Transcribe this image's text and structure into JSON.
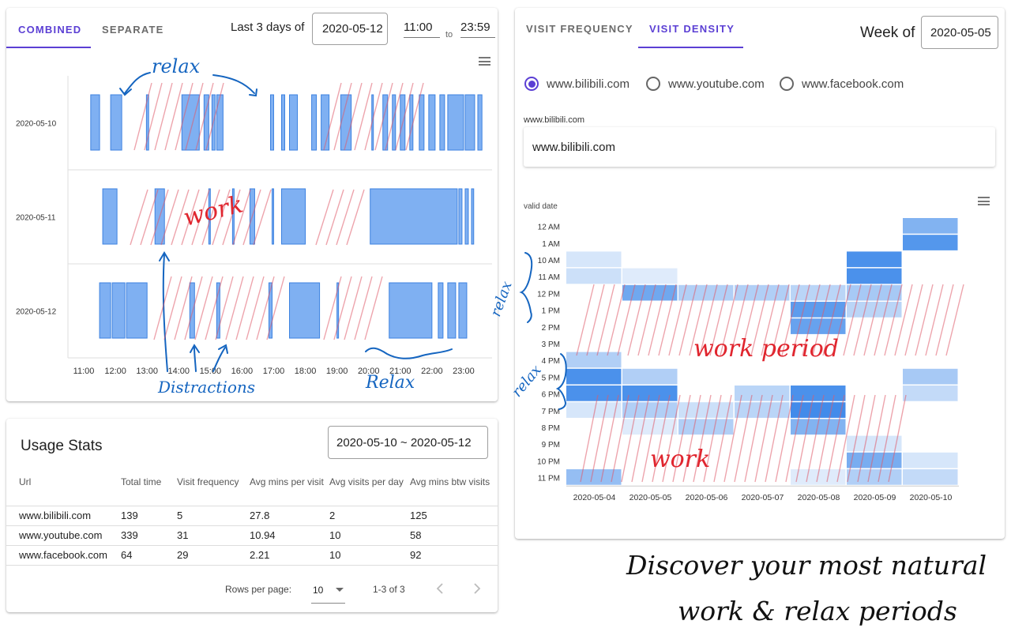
{
  "left": {
    "tabs": [
      {
        "label": "COMBINED",
        "active": true
      },
      {
        "label": "SEPARATE",
        "active": false
      }
    ],
    "range_label": "Last 3 days of",
    "date": "2020-05-12",
    "time_from": "11:00",
    "to_label": "to",
    "time_to": "23:59",
    "menu_icon": "hamburger-menu-icon"
  },
  "timeline": {
    "rows": [
      {
        "label": "2020-05-10",
        "blocks": [
          [
            11.22,
            11.5
          ],
          [
            11.85,
            12.2
          ],
          [
            12.98,
            13.05
          ],
          [
            14.1,
            14.65
          ],
          [
            14.8,
            14.95
          ],
          [
            15.05,
            15.15
          ],
          [
            15.2,
            15.4
          ],
          [
            16.9,
            17.0
          ],
          [
            17.25,
            17.35
          ],
          [
            17.5,
            17.75
          ],
          [
            18.2,
            18.35
          ],
          [
            18.5,
            18.75
          ],
          [
            19.12,
            19.45
          ],
          [
            20.1,
            20.15
          ],
          [
            20.45,
            20.6
          ],
          [
            20.75,
            20.85
          ],
          [
            21.0,
            21.15
          ],
          [
            21.3,
            21.4
          ],
          [
            21.6,
            21.75
          ],
          [
            21.9,
            22.1
          ],
          [
            22.25,
            22.4
          ],
          [
            22.5,
            23.0
          ],
          [
            23.05,
            23.35
          ],
          [
            23.45,
            23.58
          ]
        ]
      },
      {
        "label": "2020-05-11",
        "blocks": [
          [
            11.6,
            12.05
          ],
          [
            13.25,
            13.55
          ],
          [
            14.95,
            15.0
          ],
          [
            15.7,
            15.75
          ],
          [
            16.25,
            16.4
          ],
          [
            16.95,
            17.0
          ],
          [
            17.25,
            18.0
          ],
          [
            20.05,
            22.8
          ],
          [
            22.85,
            22.95
          ],
          [
            23.05,
            23.15
          ],
          [
            23.25,
            23.32
          ]
        ]
      },
      {
        "label": "2020-05-12",
        "blocks": [
          [
            11.5,
            11.85
          ],
          [
            11.9,
            12.3
          ],
          [
            12.35,
            13.0
          ],
          [
            14.35,
            14.5
          ],
          [
            15.2,
            15.3
          ],
          [
            16.85,
            16.95
          ],
          [
            17.5,
            18.45
          ],
          [
            19.0,
            19.05
          ],
          [
            20.65,
            22.0
          ],
          [
            22.2,
            22.35
          ],
          [
            22.5,
            22.75
          ],
          [
            22.85,
            23.1
          ]
        ]
      }
    ],
    "ticks": [
      "11:00",
      "12:00",
      "13:00",
      "14:00",
      "15:00",
      "16:00",
      "17:00",
      "18:00",
      "19:00",
      "20:00",
      "21:00",
      "22:00",
      "23:00"
    ]
  },
  "stats": {
    "title": "Usage Stats",
    "range": "2020-05-10 ~ 2020-05-12",
    "headers": [
      "Url",
      "Total time",
      "Visit frequency",
      "Avg mins per visit",
      "Avg visits per day",
      "Avg mins btw visits"
    ],
    "rows": [
      [
        "www.bilibili.com",
        "139",
        "5",
        "27.8",
        "2",
        "125"
      ],
      [
        "www.youtube.com",
        "339",
        "31",
        "10.94",
        "10",
        "58"
      ],
      [
        "www.facebook.com",
        "64",
        "29",
        "2.21",
        "10",
        "92"
      ]
    ],
    "footer": {
      "rows_per_page_label": "Rows per page:",
      "rows_per_page": "10",
      "page_info": "1-3 of 3",
      "prev_icon": "chevron-left-icon",
      "next_icon": "chevron-right-icon"
    }
  },
  "right": {
    "tabs": [
      {
        "label": "VISIT FREQUENCY",
        "active": false
      },
      {
        "label": "VISIT DENSITY",
        "active": true
      }
    ],
    "week_label": "Week of",
    "week_value": "2020-05-05",
    "sites": [
      {
        "label": "www.bilibili.com",
        "selected": true
      },
      {
        "label": "www.youtube.com",
        "selected": false
      },
      {
        "label": "www.facebook.com",
        "selected": false
      }
    ],
    "field_label": "www.bilibili.com",
    "field_value": "www.bilibili.com",
    "menu_icon": "hamburger-menu-icon"
  },
  "chart_data": {
    "type": "heatmap",
    "ylabel": "valid date",
    "y": [
      "12 AM",
      "1 AM",
      "10 AM",
      "11 AM",
      "12 PM",
      "1 PM",
      "2 PM",
      "3 PM",
      "4 PM",
      "5 PM",
      "6 PM",
      "7 PM",
      "8 PM",
      "9 PM",
      "10 PM",
      "11 PM"
    ],
    "x": [
      "2020-05-04",
      "2020-05-05",
      "2020-05-06",
      "2020-05-07",
      "2020-05-08",
      "2020-05-09",
      "2020-05-10"
    ],
    "values": [
      [
        0,
        0,
        0,
        0,
        0,
        0,
        0.55
      ],
      [
        0,
        0,
        0,
        0,
        0,
        0,
        0.8
      ],
      [
        0.1,
        0,
        0,
        0,
        0,
        0.85,
        0
      ],
      [
        0.15,
        0.05,
        0,
        0,
        0,
        0.85,
        0
      ],
      [
        0,
        0.65,
        0.3,
        0.3,
        0.25,
        0.35,
        0
      ],
      [
        0,
        0,
        0,
        0,
        0.75,
        0.25,
        0
      ],
      [
        0,
        0,
        0,
        0,
        0.7,
        0,
        0
      ],
      [
        0,
        0,
        0,
        0,
        0,
        0,
        0
      ],
      [
        0.3,
        0,
        0,
        0,
        0,
        0,
        0
      ],
      [
        0.85,
        0.3,
        0,
        0,
        0,
        0,
        0.35
      ],
      [
        0.85,
        0.85,
        0,
        0.25,
        0.85,
        0,
        0.2
      ],
      [
        0.1,
        0.3,
        0.15,
        0.25,
        0.9,
        0,
        0
      ],
      [
        0,
        0.05,
        0.3,
        0,
        0.55,
        0,
        0
      ],
      [
        0,
        0,
        0,
        0,
        0,
        0.1,
        0
      ],
      [
        0,
        0,
        0,
        0,
        0,
        0.6,
        0.1
      ],
      [
        0.45,
        0,
        0,
        0,
        0.05,
        0.3,
        0.2
      ]
    ]
  },
  "annotations": {
    "relax_top": "relax",
    "work_left": "work",
    "distractions": "Distractions",
    "relax_bottom": "Relax",
    "relax_r1": "relax",
    "relax_r2": "relax",
    "work_period": "work period",
    "work_right": "work",
    "tagline_1": "Discover your most natural",
    "tagline_2": "work & relax periods"
  }
}
